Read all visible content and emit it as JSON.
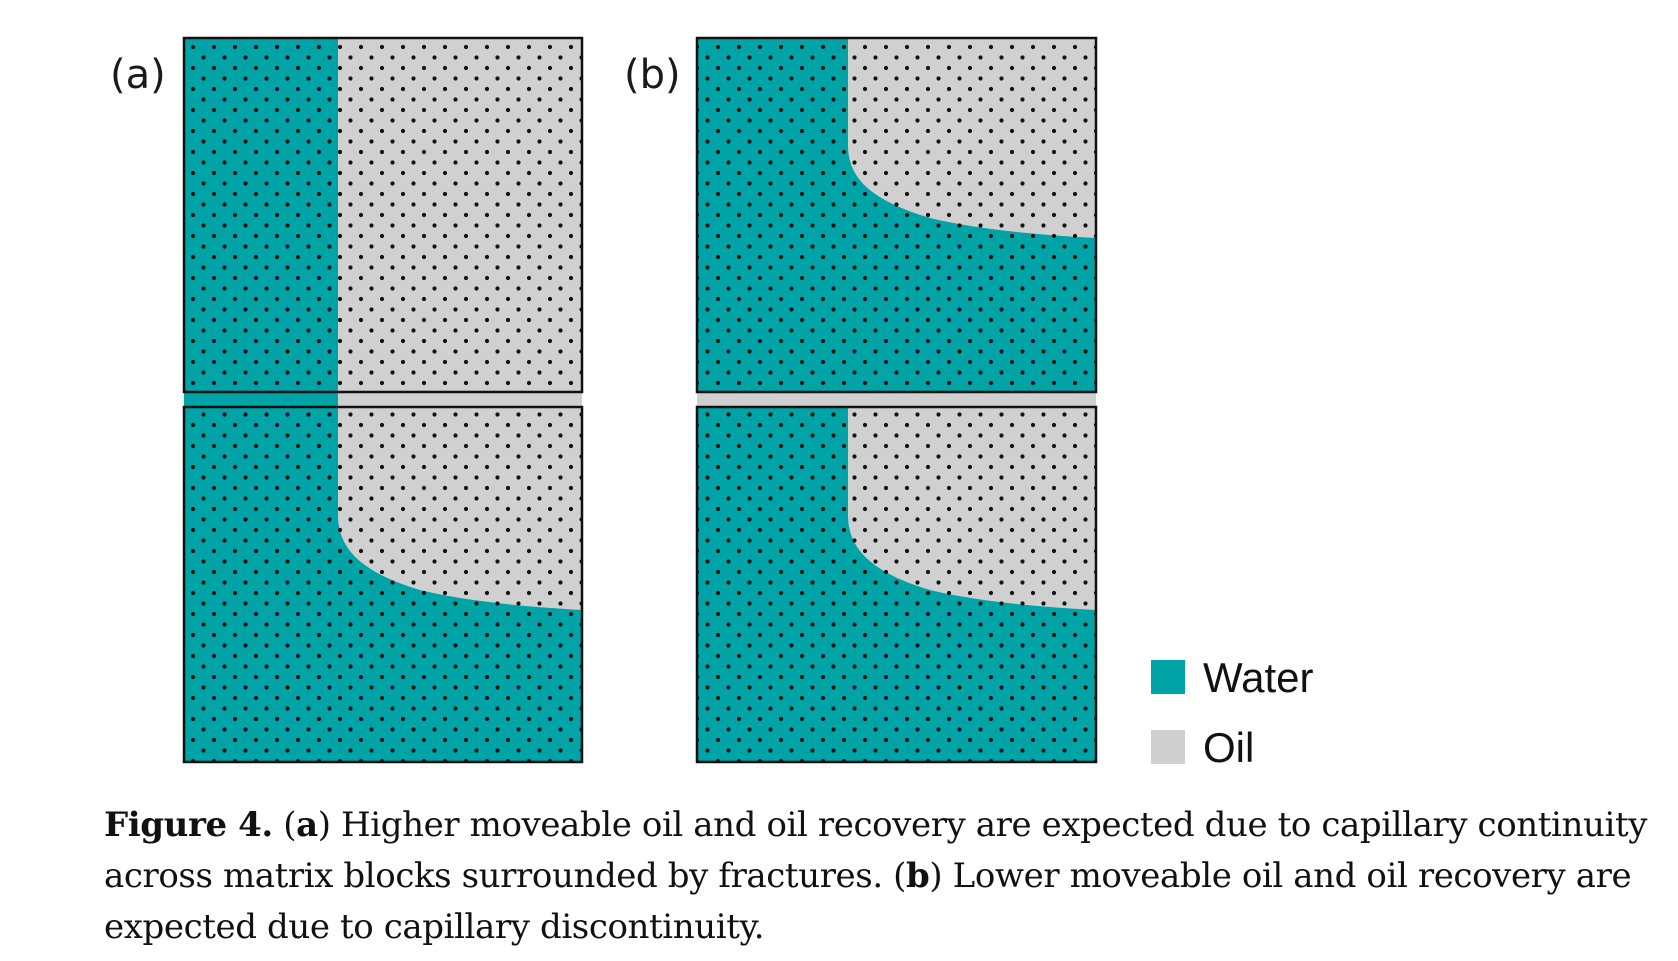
{
  "colors": {
    "water": "#00a3a6",
    "oil": "#d0d0d0",
    "border": "#111111",
    "dot": "#111111"
  },
  "panels": [
    {
      "label": "(a)"
    },
    {
      "label": "(b)"
    }
  ],
  "legend": [
    {
      "label": "Water",
      "color": "#00a3a6"
    },
    {
      "label": "Oil",
      "color": "#cfcfcf"
    }
  ],
  "caption": {
    "figure_label": "Figure 4.",
    "a_open": "(",
    "a_letter": "a",
    "a_text": ") Higher moveable oil and oil recovery are expected due to capillary continuity across matrix blocks surrounded by fractures. (",
    "b_letter": "b",
    "b_text": ") Lower moveable oil and oil recovery are expected due to capillary discontinuity."
  }
}
